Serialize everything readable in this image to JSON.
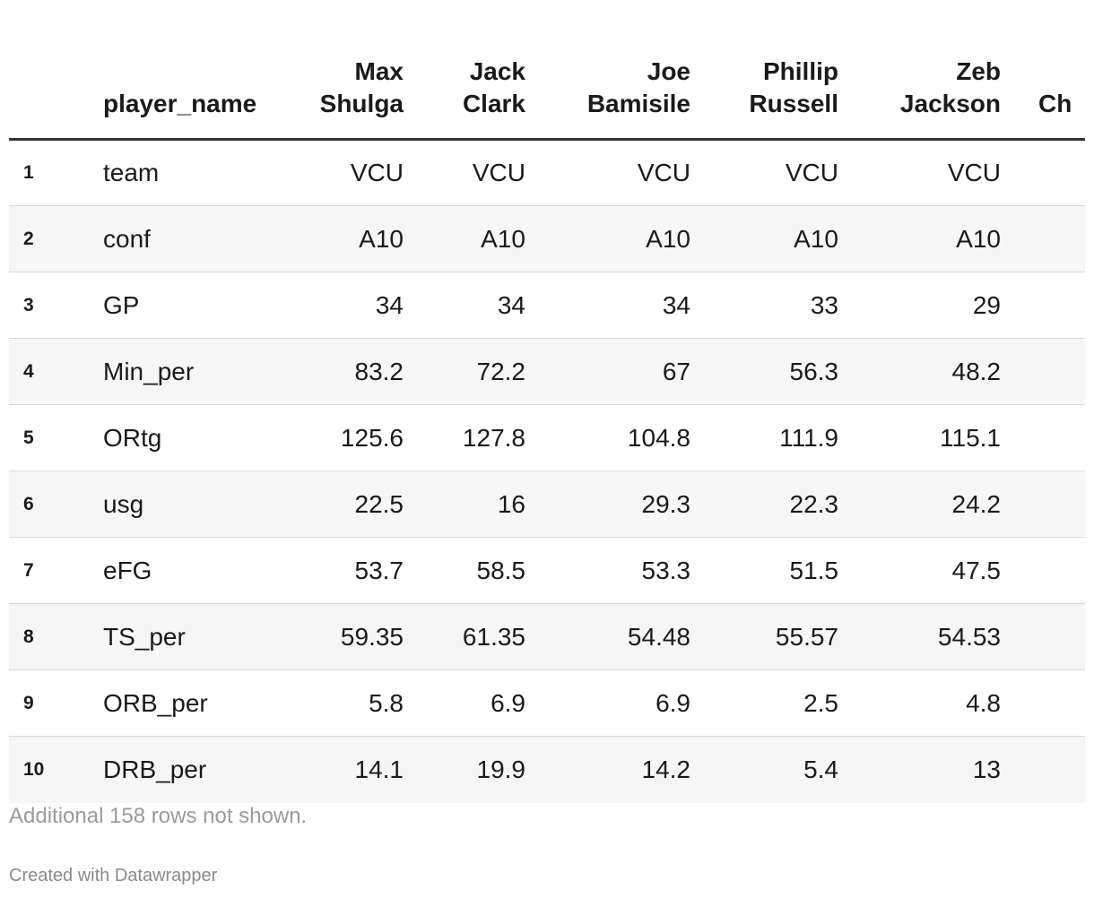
{
  "table": {
    "columns": {
      "index": "",
      "name": "player_name",
      "players": [
        [
          "Max",
          "Shulga"
        ],
        [
          "Jack",
          "Clark"
        ],
        [
          "Joe",
          "Bamisile"
        ],
        [
          "Phillip",
          "Russell"
        ],
        [
          "Zeb",
          "Jackson"
        ]
      ],
      "next_partial": "Ch"
    },
    "rows": [
      {
        "idx": "1",
        "name": "team",
        "values": [
          "VCU",
          "VCU",
          "VCU",
          "VCU",
          "VCU"
        ]
      },
      {
        "idx": "2",
        "name": "conf",
        "values": [
          "A10",
          "A10",
          "A10",
          "A10",
          "A10"
        ]
      },
      {
        "idx": "3",
        "name": "GP",
        "values": [
          "34",
          "34",
          "34",
          "33",
          "29"
        ]
      },
      {
        "idx": "4",
        "name": "Min_per",
        "values": [
          "83.2",
          "72.2",
          "67",
          "56.3",
          "48.2"
        ]
      },
      {
        "idx": "5",
        "name": "ORtg",
        "values": [
          "125.6",
          "127.8",
          "104.8",
          "111.9",
          "115.1"
        ]
      },
      {
        "idx": "6",
        "name": "usg",
        "values": [
          "22.5",
          "16",
          "29.3",
          "22.3",
          "24.2"
        ]
      },
      {
        "idx": "7",
        "name": "eFG",
        "values": [
          "53.7",
          "58.5",
          "53.3",
          "51.5",
          "47.5"
        ]
      },
      {
        "idx": "8",
        "name": "TS_per",
        "values": [
          "59.35",
          "61.35",
          "54.48",
          "55.57",
          "54.53"
        ]
      },
      {
        "idx": "9",
        "name": "ORB_per",
        "values": [
          "5.8",
          "6.9",
          "6.9",
          "2.5",
          "4.8"
        ]
      },
      {
        "idx": "10",
        "name": "DRB_per",
        "values": [
          "14.1",
          "19.9",
          "14.2",
          "5.4",
          "13"
        ]
      }
    ]
  },
  "footer": {
    "note": "Additional 158 rows not shown.",
    "credit": "Created with Datawrapper"
  },
  "colors": {
    "text": "#1a1a1a",
    "header_rule": "#333333",
    "row_stripe": "#f6f6f6",
    "row_divider": "#d9d9d9",
    "note_text": "#9a9a9a"
  }
}
